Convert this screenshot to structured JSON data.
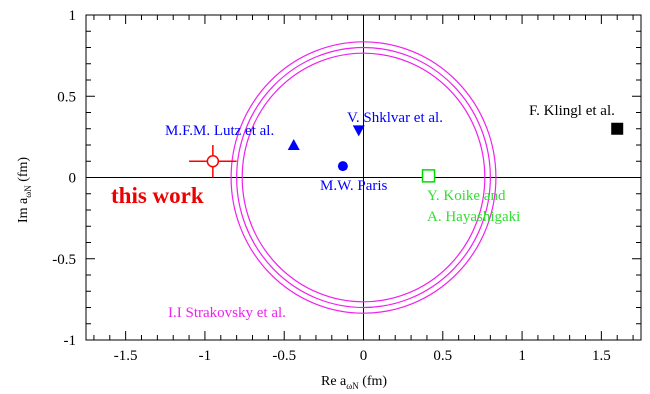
{
  "chart_data": {
    "type": "scatter",
    "xlabel": {
      "main": "Re a",
      "sub": "ωN",
      "unit": " (fm)"
    },
    "ylabel": {
      "main": "Im a",
      "sub": "ωN",
      "unit": " (fm)"
    },
    "xlim": [
      -1.75,
      1.75
    ],
    "ylim": [
      -1,
      1
    ],
    "x_ticks": [
      "-1.5",
      "-1",
      "-0.5",
      "0",
      "0.5",
      "1",
      "1.5"
    ],
    "x_tick_values": [
      -1.5,
      -1,
      -0.5,
      0,
      0.5,
      1,
      1.5
    ],
    "y_ticks": [
      "1",
      "0.5",
      "0",
      "-0.5",
      "-1"
    ],
    "y_tick_values": [
      1,
      0.5,
      0,
      -0.5,
      -1
    ],
    "grid": false,
    "reference_lines": {
      "x": 0,
      "y": 0
    },
    "points": [
      {
        "label": "this work",
        "x": -0.95,
        "y": 0.1,
        "xerr": 0.15,
        "yerr": 0.1,
        "marker": "open-circle",
        "color": "#ff0000"
      },
      {
        "label": "M.F.M. Lutz et al.",
        "x": -0.44,
        "y": 0.2,
        "marker": "triangle-up",
        "color": "#0000ff"
      },
      {
        "label": "V. Shklvar et al.",
        "x": -0.03,
        "y": 0.29,
        "marker": "triangle-down",
        "color": "#0000ff"
      },
      {
        "label": "M.W. Paris",
        "x": -0.13,
        "y": 0.07,
        "marker": "filled-circle",
        "color": "#0000ff"
      },
      {
        "label": "Y. Koike and A. Hayashigaki",
        "x": 0.41,
        "y": 0.01,
        "marker": "open-square",
        "color": "#00dd00"
      },
      {
        "label": "F. Klingl et al.",
        "x": 1.6,
        "y": 0.3,
        "marker": "filled-square",
        "color": "#000000"
      }
    ],
    "circle": {
      "label": "I.I Strakovsky et al.",
      "center": [
        0,
        0
      ],
      "radius": 0.8,
      "band": 0.07,
      "color": "#ee22ee"
    },
    "annotations": [
      {
        "text": "this work",
        "color": "#ee0000",
        "bold": true
      },
      {
        "text": "M.F.M. Lutz et al.",
        "color": "#0000ff"
      },
      {
        "text": "V. Shklvar et al.",
        "color": "#0000ff"
      },
      {
        "text": "M.W. Paris",
        "color": "#0000ff"
      },
      {
        "text": "Y. Koike and",
        "color": "#33dd33"
      },
      {
        "text": "A. Hayashigaki",
        "color": "#33dd33"
      },
      {
        "text": "F. Klingl et al.",
        "color": "#000000"
      },
      {
        "text": "I.I Strakovsky et al.",
        "color": "#ee22ee"
      }
    ]
  }
}
